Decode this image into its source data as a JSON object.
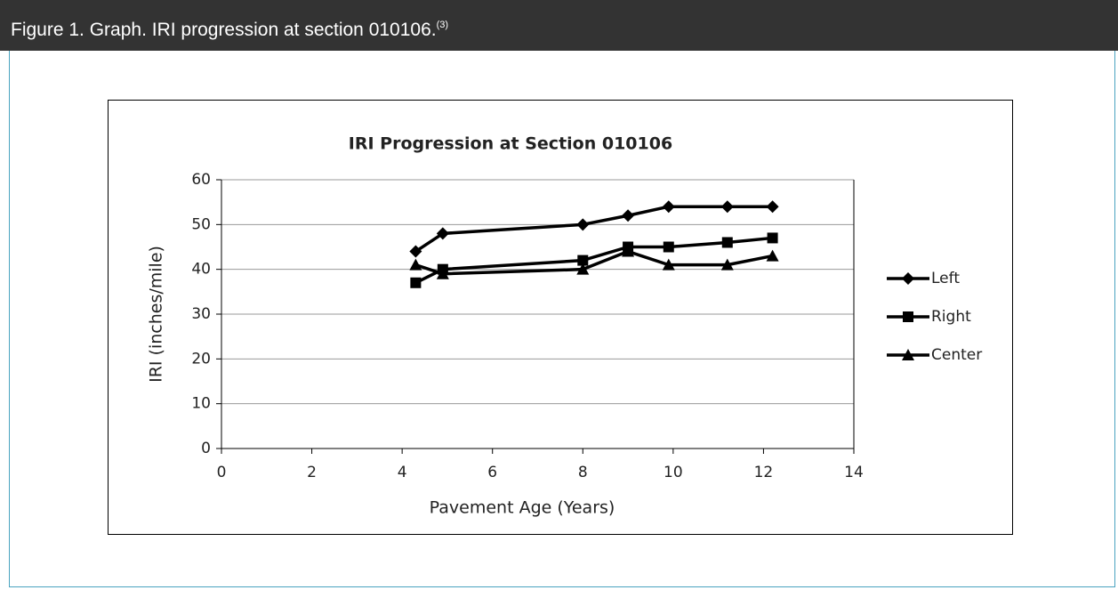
{
  "header": {
    "title": "Figure 1. Graph. IRI progression at section 010106.",
    "reference": "(3)"
  },
  "chart_data": {
    "type": "line",
    "title": "IRI Progression at Section 010106",
    "x_label": "Pavement Age (Years)",
    "y_label": "IRI (inches/mile)",
    "x": [
      4.3,
      4.9,
      8,
      9,
      9.9,
      11.2,
      12.2
    ],
    "series": [
      {
        "name": "Left",
        "color": "#000000",
        "marker": "diamond",
        "values": [
          44,
          48,
          50,
          52,
          54,
          54,
          54
        ]
      },
      {
        "name": "Right",
        "color": "#000000",
        "marker": "square",
        "values": [
          37,
          40,
          42,
          45,
          45,
          46,
          47
        ]
      },
      {
        "name": "Center",
        "color": "#000000",
        "marker": "triangle",
        "values": [
          41,
          39,
          40,
          44,
          41,
          41,
          43
        ]
      }
    ],
    "xlim": [
      0,
      14
    ],
    "xticks": [
      0,
      2,
      4,
      6,
      8,
      10,
      12,
      14
    ],
    "ylim": [
      0,
      60
    ],
    "yticks": [
      0,
      10,
      20,
      30,
      40,
      50,
      60
    ],
    "grid": true,
    "legend": "right"
  }
}
